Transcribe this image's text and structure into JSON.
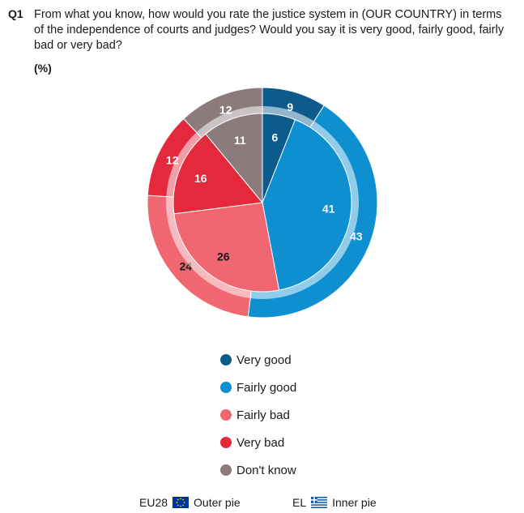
{
  "question": {
    "label": "Q1",
    "text": "From what you know, how would you rate the justice system in (OUR COUNTRY) in terms of the independence of courts and judges? Would you say it is very good, fairly good, fairly bad or very bad?",
    "unit": "(%)"
  },
  "chart_data": {
    "type": "pie",
    "categories": [
      "Very good",
      "Fairly good",
      "Fairly bad",
      "Very bad",
      "Don't know"
    ],
    "colors": [
      "#0d5b8c",
      "#0d8fd0",
      "#f06671",
      "#e5293d",
      "#8b7b7c"
    ],
    "label_colors": [
      "#ffffff",
      "#ffffff",
      "#1a1a1a",
      "#ffffff",
      "#ffffff"
    ],
    "series": [
      {
        "name": "EU28",
        "values": [
          9,
          43,
          24,
          12,
          12
        ]
      },
      {
        "name": "EL",
        "values": [
          6,
          41,
          26,
          16,
          11
        ]
      }
    ]
  },
  "legend": [
    "Very good",
    "Fairly good",
    "Fairly bad",
    "Very bad",
    "Don't know"
  ],
  "footer": {
    "outer_code": "EU28",
    "outer_label": "Outer pie",
    "inner_code": "EL",
    "inner_label": "Inner pie",
    "outer_flag_icon": "eu-flag-icon",
    "inner_flag_icon": "greece-flag-icon"
  }
}
